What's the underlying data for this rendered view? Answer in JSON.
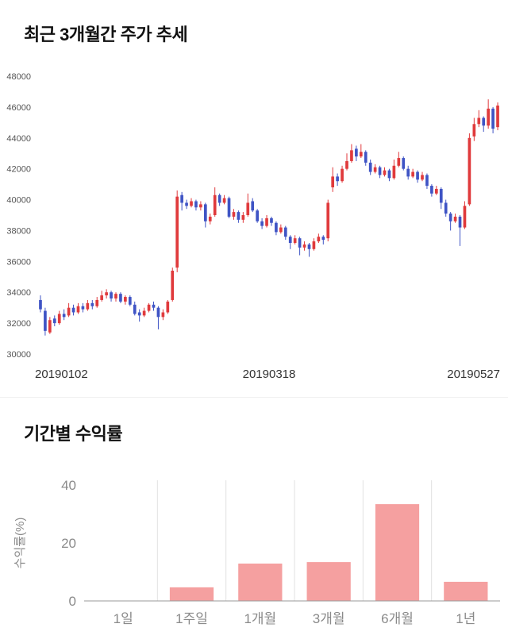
{
  "sections": {
    "price": {
      "title": "최근 3개월간 주가 추세"
    },
    "returns": {
      "title": "기간별 수익률"
    }
  },
  "chart_data": [
    {
      "type": "candlestick",
      "title": "최근 3개월간 주가 추세",
      "ylim": [
        30000,
        48000
      ],
      "yticks": [
        48000,
        46000,
        44000,
        42000,
        40000,
        38000,
        36000,
        34000,
        32000,
        30000
      ],
      "xtick_labels": [
        "20190102",
        "20190318",
        "20190527"
      ],
      "up_color": "#e03a3c",
      "down_color": "#3f54c5",
      "grid": false,
      "legend": false,
      "candles_format": [
        "open",
        "high",
        "low",
        "close"
      ],
      "candles": [
        [
          33500,
          33800,
          32700,
          32900
        ],
        [
          32800,
          33000,
          31200,
          31500
        ],
        [
          31400,
          32400,
          31300,
          32200
        ],
        [
          32300,
          32500,
          31800,
          32000
        ],
        [
          32000,
          32800,
          31900,
          32600
        ],
        [
          32600,
          32900,
          32200,
          32400
        ],
        [
          32500,
          33300,
          32400,
          33000
        ],
        [
          33000,
          33200,
          32500,
          32700
        ],
        [
          32700,
          33300,
          32600,
          33100
        ],
        [
          33100,
          33300,
          32700,
          32900
        ],
        [
          32900,
          33500,
          32800,
          33300
        ],
        [
          33300,
          33500,
          32900,
          33100
        ],
        [
          33100,
          33700,
          33000,
          33500
        ],
        [
          33500,
          34100,
          33400,
          33800
        ],
        [
          33800,
          34200,
          33600,
          34000
        ],
        [
          34000,
          34100,
          33400,
          33600
        ],
        [
          33600,
          34000,
          33400,
          33900
        ],
        [
          33900,
          34000,
          33300,
          33400
        ],
        [
          33400,
          33800,
          33200,
          33700
        ],
        [
          33700,
          33800,
          33100,
          33200
        ],
        [
          33200,
          33400,
          32500,
          32600
        ],
        [
          32700,
          32900,
          32100,
          32500
        ],
        [
          32500,
          33000,
          32400,
          32800
        ],
        [
          32800,
          33300,
          32700,
          33200
        ],
        [
          33200,
          33400,
          32800,
          33000
        ],
        [
          33000,
          33100,
          31600,
          32400
        ],
        [
          32400,
          32900,
          32200,
          32700
        ],
        [
          32700,
          33500,
          32600,
          33400
        ],
        [
          33500,
          35600,
          33400,
          35400
        ],
        [
          35600,
          40600,
          35300,
          40200
        ],
        [
          40300,
          40500,
          39300,
          39800
        ],
        [
          39800,
          40000,
          39400,
          39600
        ],
        [
          39600,
          40100,
          39500,
          39900
        ],
        [
          39900,
          40000,
          39300,
          39500
        ],
        [
          39500,
          39900,
          39300,
          39700
        ],
        [
          39700,
          39800,
          38200,
          38600
        ],
        [
          38600,
          39100,
          38400,
          38900
        ],
        [
          39000,
          40800,
          38900,
          40300
        ],
        [
          40300,
          40400,
          39600,
          39800
        ],
        [
          39800,
          40300,
          39700,
          40100
        ],
        [
          40100,
          40200,
          38800,
          38900
        ],
        [
          38900,
          39400,
          38700,
          39200
        ],
        [
          39200,
          39300,
          38500,
          38700
        ],
        [
          38700,
          39200,
          38500,
          39000
        ],
        [
          39000,
          40400,
          38900,
          39800
        ],
        [
          39900,
          40100,
          39200,
          39300
        ],
        [
          39300,
          39400,
          38500,
          38600
        ],
        [
          38600,
          38800,
          38100,
          38300
        ],
        [
          38300,
          39000,
          38200,
          38800
        ],
        [
          38800,
          38900,
          38300,
          38500
        ],
        [
          38500,
          38600,
          37700,
          37900
        ],
        [
          37900,
          38400,
          37800,
          38200
        ],
        [
          38200,
          38300,
          37400,
          37600
        ],
        [
          37600,
          37700,
          36800,
          37200
        ],
        [
          37200,
          37700,
          37100,
          37500
        ],
        [
          37500,
          37600,
          36400,
          36900
        ],
        [
          36900,
          37300,
          36700,
          37100
        ],
        [
          37100,
          37200,
          36300,
          36800
        ],
        [
          36800,
          37500,
          36700,
          37300
        ],
        [
          37300,
          37800,
          37200,
          37600
        ],
        [
          37600,
          37700,
          37100,
          37400
        ],
        [
          37500,
          40000,
          37300,
          39800
        ],
        [
          40800,
          42100,
          40500,
          41500
        ],
        [
          41500,
          41700,
          40900,
          41200
        ],
        [
          41200,
          42200,
          41100,
          42000
        ],
        [
          42000,
          43000,
          41900,
          42500
        ],
        [
          42500,
          43600,
          42400,
          43200
        ],
        [
          43300,
          43500,
          42500,
          42800
        ],
        [
          42800,
          43600,
          42700,
          43100
        ],
        [
          43100,
          43200,
          42200,
          42400
        ],
        [
          42400,
          42600,
          41600,
          41800
        ],
        [
          41800,
          42300,
          41700,
          42100
        ],
        [
          42100,
          42200,
          41400,
          41600
        ],
        [
          41600,
          42100,
          41500,
          41900
        ],
        [
          41900,
          42000,
          41200,
          41400
        ],
        [
          41400,
          42600,
          41300,
          42200
        ],
        [
          42200,
          43100,
          42100,
          42700
        ],
        [
          42700,
          42800,
          41900,
          42000
        ],
        [
          42000,
          42200,
          41300,
          41500
        ],
        [
          41500,
          42000,
          41400,
          41800
        ],
        [
          41800,
          41900,
          41100,
          41300
        ],
        [
          41300,
          41800,
          41200,
          41600
        ],
        [
          41600,
          41700,
          40700,
          40900
        ],
        [
          40900,
          41000,
          40200,
          40400
        ],
        [
          40400,
          40900,
          40300,
          40700
        ],
        [
          40700,
          40800,
          39400,
          39800
        ],
        [
          39800,
          40000,
          38900,
          39100
        ],
        [
          39100,
          39200,
          38000,
          38600
        ],
        [
          38600,
          39100,
          38500,
          38900
        ],
        [
          38900,
          39000,
          37000,
          38200
        ],
        [
          38200,
          39900,
          38100,
          39600
        ],
        [
          39700,
          44300,
          39600,
          44000
        ],
        [
          44100,
          45300,
          43800,
          44900
        ],
        [
          44900,
          45800,
          44700,
          45300
        ],
        [
          45300,
          45400,
          44400,
          44800
        ],
        [
          44800,
          46500,
          44600,
          45900
        ],
        [
          45900,
          46000,
          44300,
          44600
        ],
        [
          44700,
          46300,
          44500,
          46100
        ]
      ]
    },
    {
      "type": "bar",
      "title": "기간별 수익률",
      "ylabel": "수익률(%)",
      "categories": [
        "1일",
        "1주일",
        "1개월",
        "3개월",
        "6개월",
        "1년"
      ],
      "values": [
        0,
        4.7,
        12.9,
        13.4,
        33.4,
        6.6
      ],
      "ylim": [
        0,
        40
      ],
      "yticks": [
        40,
        20,
        0
      ],
      "bar_color": "#f5a0a0",
      "baseline_color": "#9a9a9a",
      "separator_color": "#e2e2e2",
      "legend": false
    }
  ]
}
